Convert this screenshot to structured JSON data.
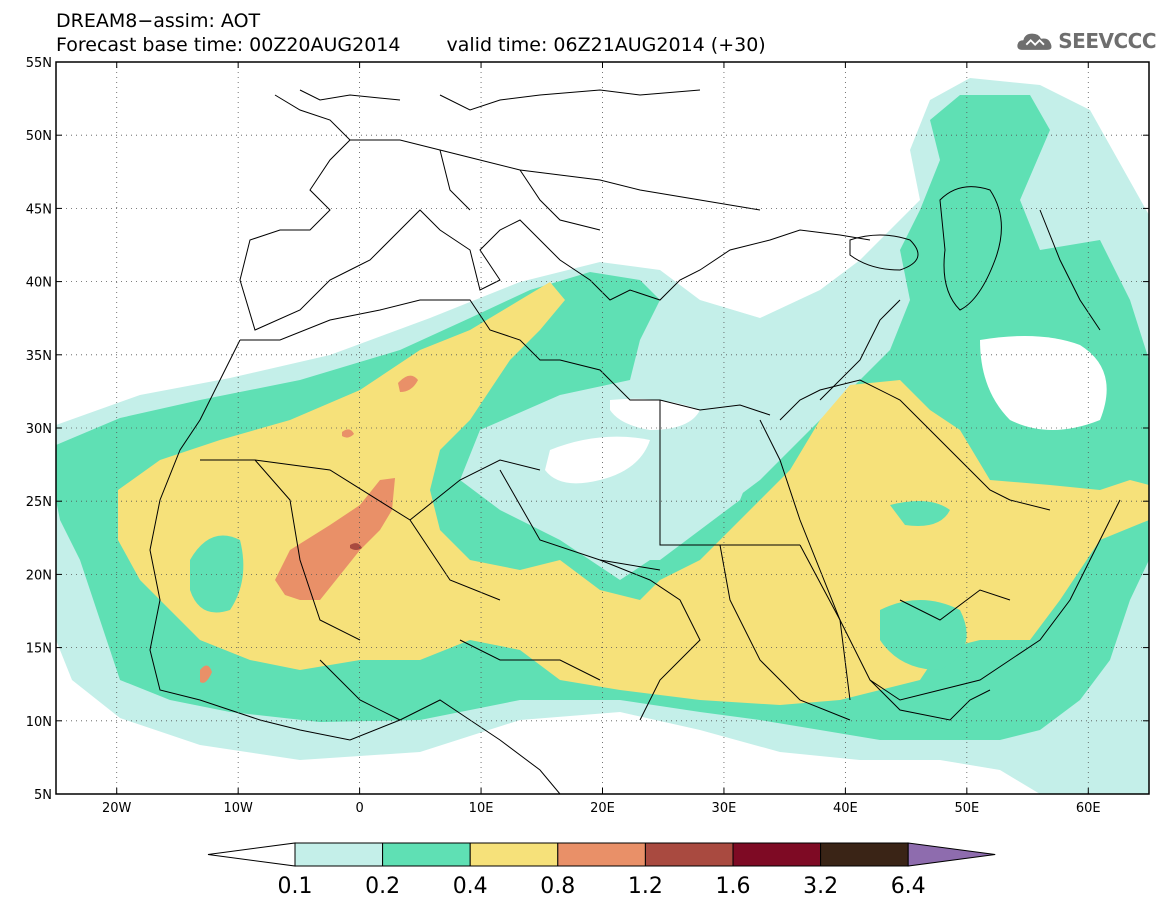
{
  "header": {
    "title": "DREAM8−assim: AOT",
    "base_time": "Forecast base time: 00Z20AUG2014",
    "valid_time": "valid time: 06Z21AUG2014 (+30)"
  },
  "logo": {
    "text": "SEEVCCC",
    "icon": "cloud-logo-icon",
    "color": "#6e6e6e"
  },
  "map": {
    "lon_range": [
      -25,
      65
    ],
    "lat_range": [
      5,
      55
    ],
    "lat_ticks": [
      "55N",
      "50N",
      "45N",
      "40N",
      "35N",
      "30N",
      "25N",
      "20N",
      "15N",
      "10N",
      "5N"
    ],
    "lon_ticks": [
      "20W",
      "10W",
      "0",
      "10E",
      "20E",
      "30E",
      "40E",
      "50E",
      "60E"
    ],
    "gridlines": "dotted"
  },
  "colorbar": {
    "labels": [
      "0.1",
      "0.2",
      "0.4",
      "0.8",
      "1.2",
      "1.6",
      "3.2",
      "6.4"
    ],
    "colors": [
      "#ffffff",
      "#c4efe9",
      "#5fe0b4",
      "#f6e17a",
      "#e99068",
      "#a94a40",
      "#7e0a24",
      "#3a2416",
      "#8e6cae"
    ]
  }
}
